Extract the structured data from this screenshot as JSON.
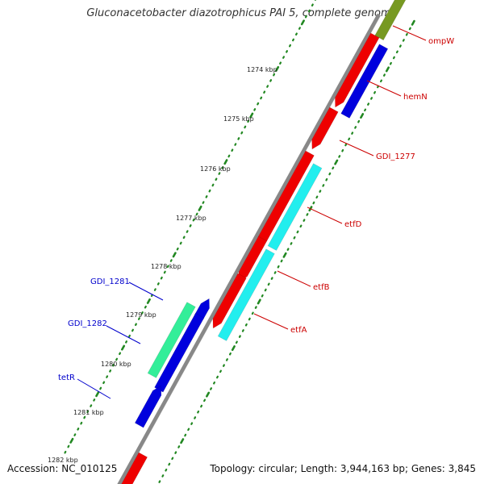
{
  "title": "Gluconacetobacter diazotrophicus PAI 5, complete genome",
  "footer": {
    "accession": "Accession: NC_010125",
    "topology": "Topology: circular; Length: 3,944,163 bp; Genes: 3,845"
  },
  "ticks": [
    "1274 kbp",
    "1275 kbp",
    "1276 kbp",
    "1277 kbp",
    "1278 kbp",
    "1279 kbp",
    "1280 kbp",
    "1281 kbp",
    "1282 kbp"
  ],
  "gene_labels": [
    {
      "name": "ompW",
      "color": "#cc0000"
    },
    {
      "name": "hemN",
      "color": "#cc0000"
    },
    {
      "name": "GDI_1277",
      "color": "#cc0000"
    },
    {
      "name": "etfD",
      "color": "#cc0000"
    },
    {
      "name": "etfB",
      "color": "#cc0000"
    },
    {
      "name": "etfA",
      "color": "#cc0000"
    },
    {
      "name": "GDI_1281",
      "color": "#0000cc"
    },
    {
      "name": "GDI_1282",
      "color": "#0000cc"
    },
    {
      "name": "tetR",
      "color": "#0000cc"
    }
  ],
  "colors": {
    "backbone": "#888888",
    "cds_red": "#ee0000",
    "cds_blue": "#0000dd",
    "cds_cyan": "#22eeee",
    "cds_green": "#33ee99",
    "cds_olive": "#779922",
    "gc_track": "#228822"
  }
}
